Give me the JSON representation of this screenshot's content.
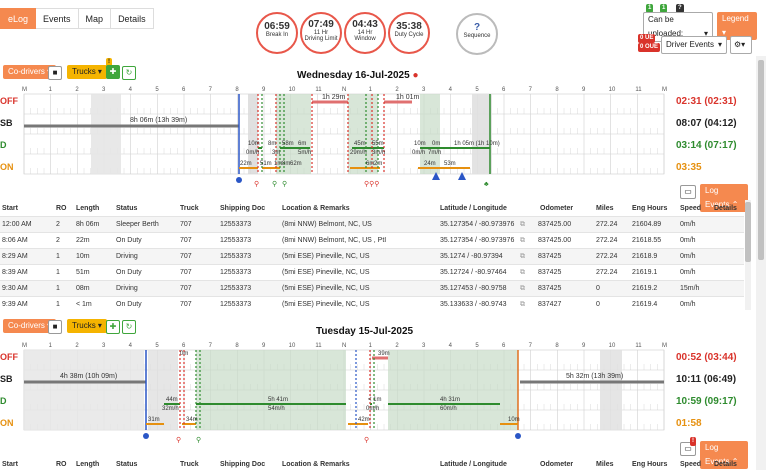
{
  "tabs": [
    {
      "label": "eLog",
      "active": true
    },
    {
      "label": "Events",
      "active": false
    },
    {
      "label": "Map",
      "active": false
    },
    {
      "label": "Details",
      "active": false
    }
  ],
  "gauges": [
    {
      "value": "06:59",
      "label": "Break In"
    },
    {
      "value": "07:49",
      "label": "11 Hr",
      "label2": "Driving Limit"
    },
    {
      "value": "04:43",
      "label": "14 Hr",
      "label2": "Window"
    },
    {
      "value": "35:38",
      "label": "Duty Cycle"
    },
    {
      "value": "?",
      "label": "Sequence"
    }
  ],
  "top_right": {
    "badges": [
      "1",
      "1",
      "?"
    ],
    "upload_select": "Can be uploaded:",
    "legend_button": "Legend",
    "ue_badge": "0 UE",
    "oue_badge": "0 OUE",
    "events_select": "Driver Events",
    "gear_icon": "gear-icon"
  },
  "toolbar": {
    "codrivers": "Co-drivers",
    "trucks": "Trucks"
  },
  "axis": {
    "hours": [
      "M",
      "1",
      "2",
      "3",
      "4",
      "5",
      "6",
      "7",
      "8",
      "9",
      "10",
      "11",
      "N",
      "1",
      "2",
      "3",
      "4",
      "5",
      "6",
      "7",
      "8",
      "9",
      "10",
      "11",
      "M"
    ]
  },
  "day1": {
    "title": "Wednesday 16-Jul-2025",
    "statuses": [
      {
        "code": "OFF",
        "color": "#d9332b",
        "total": "02:31 (02:31)"
      },
      {
        "code": "SB",
        "color": "#222222",
        "total": "08:07 (04:12)"
      },
      {
        "code": "D",
        "color": "#2e8b2e",
        "total": "03:14 (07:17)"
      },
      {
        "code": "ON",
        "color": "#e6900f",
        "total": "03:35"
      }
    ],
    "labels": {
      "sb": "8h 06m (13h 39m)",
      "off1": "1h 29m",
      "off2": "1h 01m",
      "d1": "10m",
      "d1b": "0m/h",
      "d2": "8m",
      "d3": "58m",
      "d3b": "3m",
      "d4": "6m",
      "d4b": "5m/h",
      "d5": "45m",
      "d5b": "29m/h",
      "d6": "55m",
      "d6b": "3m/h",
      "d7": "10m",
      "d7b": "0m/h",
      "d8": "0m",
      "d8b": "7m/h",
      "d9": "1h 05m (1h 10m)",
      "on1": "22m",
      "on2": "51m",
      "on3": "1m",
      "on4": "8m",
      "on5": "62m",
      "on6": "6m",
      "on7": "2m",
      "on8": "24m",
      "on9": "53m"
    },
    "log_events_button": "Log Events",
    "table": {
      "headers": [
        "Start",
        "RO",
        "Length",
        "Status",
        "Truck",
        "Shipping Doc",
        "Location & Remarks",
        "Latitude / Longitude",
        "Odometer",
        "Miles",
        "Eng Hours",
        "Speed",
        "Details"
      ],
      "rows": [
        [
          "12:00 AM",
          "2",
          "8h 06m",
          "Sleeper Berth",
          "707",
          "12553373",
          "(8mi NNW) Belmont, NC, US",
          "35.127354 / -80.973976",
          "837425.00",
          "272.24",
          "21604.89",
          "0m/h"
        ],
        [
          "8:06 AM",
          "2",
          "22m",
          "On Duty",
          "707",
          "12553373",
          "(8mi NNW) Belmont, NC, US , PtI",
          "35.127354 / -80.973976",
          "837425.00",
          "272.24",
          "21618.55",
          "0m/h"
        ],
        [
          "8:29 AM",
          "1",
          "10m",
          "Driving",
          "707",
          "12553373",
          "(5mi ESE) Pineville, NC, US",
          "35.1274 / -80.97394",
          "837425",
          "272.24",
          "21618.9",
          "0m/h"
        ],
        [
          "8:39 AM",
          "1",
          "51m",
          "On Duty",
          "707",
          "12553373",
          "(5mi ESE) Pineville, NC, US",
          "35.12724 / -80.97464",
          "837425",
          "272.24",
          "21619.1",
          "0m/h"
        ],
        [
          "9:30 AM",
          "1",
          "08m",
          "Driving",
          "707",
          "12553373",
          "(5mi ESE) Pineville, NC, US",
          "35.127453 / -80.9758",
          "837425",
          "0",
          "21619.2",
          "15m/h"
        ],
        [
          "9:39 AM",
          "1",
          "< 1m",
          "On Duty",
          "707",
          "12553373",
          "(5mi ESE) Pineville, NC, US",
          "35.133633 / -80.9743",
          "837427",
          "0",
          "21619.4",
          "0m/h"
        ]
      ]
    }
  },
  "day2": {
    "title": "Tuesday 15-Jul-2025",
    "statuses": [
      {
        "code": "OFF",
        "color": "#d9332b",
        "total": "00:52 (03:44)"
      },
      {
        "code": "SB",
        "color": "#222222",
        "total": "10:11 (06:49)"
      },
      {
        "code": "D",
        "color": "#2e8b2e",
        "total": "10:59 (09:17)"
      },
      {
        "code": "ON",
        "color": "#e6900f",
        "total": "01:58"
      }
    ],
    "labels": {
      "sb1": "4h 38m (10h 09m)",
      "sb2": "5h 32m (13h 39m)",
      "off1": "0m",
      "off2": "39m",
      "d1": "44m",
      "d1b": "32m/h",
      "d2": "5h 41m",
      "d2b": "54m/h",
      "d3": "< 1m",
      "d3b": "0m/h",
      "d4": "4h 31m",
      "d4b": "60m/h",
      "on1": "31m",
      "on2": "34m",
      "on3": "42m",
      "on4": "10m"
    },
    "log_events_button": "Log Events",
    "table_headers": [
      "Start",
      "RO",
      "Length",
      "Status",
      "Truck",
      "Shipping Doc",
      "Location & Remarks",
      "Latitude / Longitude",
      "Odometer",
      "Miles",
      "Eng Hours",
      "Speed",
      "Details"
    ]
  }
}
